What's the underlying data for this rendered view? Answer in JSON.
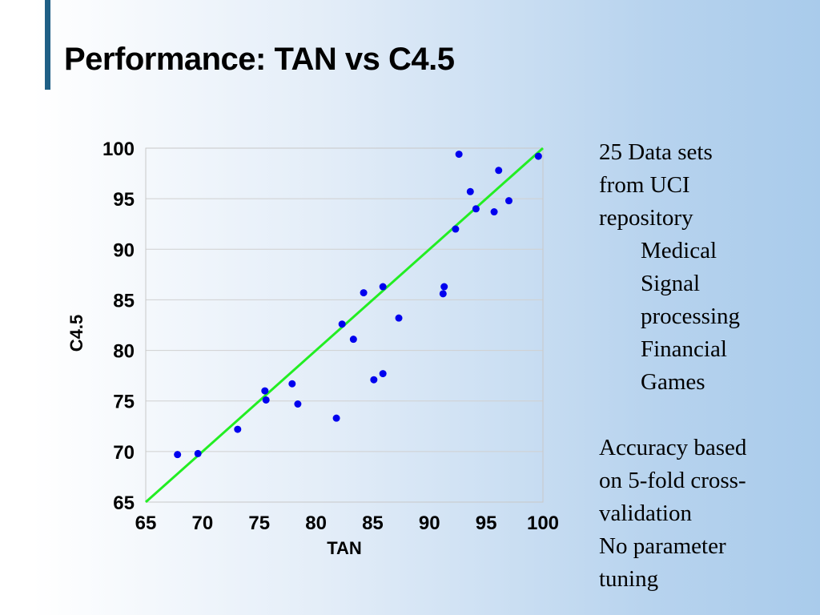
{
  "slide": {
    "title": "Performance: TAN vs C4.5"
  },
  "notes": {
    "lines": [
      "25 Data sets",
      "from UCI",
      "repository"
    ],
    "categories": [
      "Medical",
      "Signal",
      "processing",
      "Financial",
      "Games"
    ],
    "method": [
      "Accuracy based",
      "on 5-fold cross-",
      "validation",
      "No parameter",
      "tuning"
    ]
  },
  "chart_data": {
    "type": "scatter",
    "title": "",
    "xlabel": "TAN",
    "ylabel": "C4.5",
    "xlim": [
      65,
      100
    ],
    "ylim": [
      65,
      100
    ],
    "xticks": [
      65,
      70,
      75,
      80,
      85,
      90,
      95,
      100
    ],
    "yticks": [
      65,
      70,
      75,
      80,
      85,
      90,
      95,
      100
    ],
    "grid": "horizontal",
    "reference_line": {
      "x": [
        65,
        100
      ],
      "y": [
        65,
        100
      ],
      "color": "#22ee22"
    },
    "point_color": "#0000ee",
    "points": [
      {
        "x": 67.8,
        "y": 69.7
      },
      {
        "x": 69.6,
        "y": 69.8
      },
      {
        "x": 73.1,
        "y": 72.2
      },
      {
        "x": 75.5,
        "y": 76.0
      },
      {
        "x": 75.6,
        "y": 75.1
      },
      {
        "x": 77.9,
        "y": 76.7
      },
      {
        "x": 78.4,
        "y": 74.7
      },
      {
        "x": 81.8,
        "y": 73.3
      },
      {
        "x": 82.3,
        "y": 82.6
      },
      {
        "x": 83.3,
        "y": 81.1
      },
      {
        "x": 84.2,
        "y": 85.7
      },
      {
        "x": 85.1,
        "y": 77.1
      },
      {
        "x": 85.9,
        "y": 77.7
      },
      {
        "x": 85.9,
        "y": 86.3
      },
      {
        "x": 87.3,
        "y": 83.2
      },
      {
        "x": 91.2,
        "y": 85.6
      },
      {
        "x": 91.3,
        "y": 86.3
      },
      {
        "x": 92.3,
        "y": 92.0
      },
      {
        "x": 92.6,
        "y": 99.4
      },
      {
        "x": 93.6,
        "y": 95.7
      },
      {
        "x": 94.1,
        "y": 94.0
      },
      {
        "x": 95.7,
        "y": 93.7
      },
      {
        "x": 96.1,
        "y": 97.8
      },
      {
        "x": 97.0,
        "y": 94.8
      },
      {
        "x": 99.6,
        "y": 99.2
      }
    ]
  }
}
